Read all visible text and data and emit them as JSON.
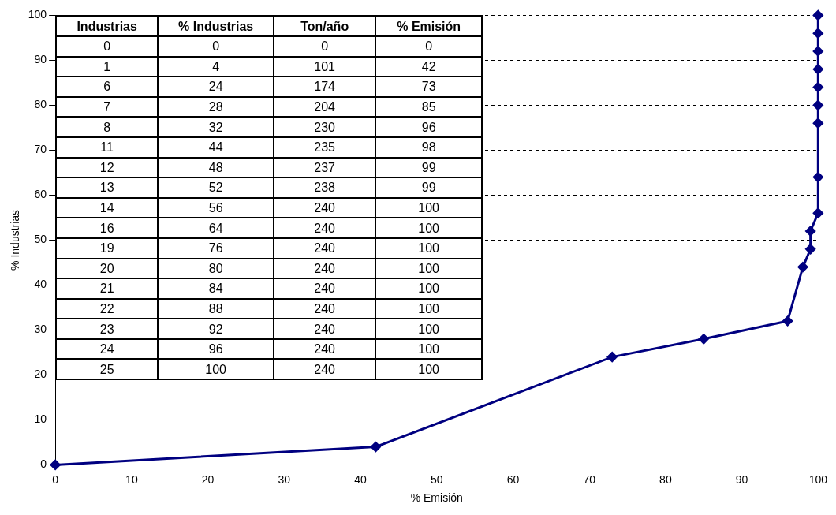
{
  "chart_data": {
    "type": "line",
    "xlabel": "% Emisión",
    "ylabel": "% Industrias",
    "x": [
      0,
      42,
      73,
      85,
      96,
      98,
      99,
      99,
      100,
      100,
      100,
      100,
      100,
      100,
      100,
      100,
      100
    ],
    "series": [
      {
        "color": "#000080",
        "values": [
          0,
          4,
          24,
          28,
          32,
          44,
          48,
          52,
          56,
          64,
          76,
          80,
          84,
          88,
          92,
          96,
          100
        ]
      }
    ],
    "xlim": [
      0,
      100
    ],
    "xticks": [
      0,
      10,
      20,
      30,
      40,
      50,
      60,
      70,
      80,
      90,
      100
    ],
    "ylim": [
      0,
      100
    ],
    "yticks": [
      0,
      10,
      20,
      30,
      40,
      50,
      60,
      70,
      80,
      90,
      100
    ],
    "grid": "y",
    "legend": false,
    "marker": "diamond",
    "line_style": "solid",
    "annotations": [
      "Industrias",
      "% Industrias",
      "Ton/año",
      "% Emisión",
      "0",
      "0",
      "0",
      "0",
      "1",
      "4",
      "101",
      "42",
      "6",
      "24",
      "174",
      "73",
      "7",
      "28",
      "204",
      "85",
      "8",
      "32",
      "230",
      "96",
      "11",
      "44",
      "235",
      "98",
      "12",
      "48",
      "237",
      "99",
      "13",
      "52",
      "238",
      "99",
      "14",
      "56",
      "240",
      "100",
      "16",
      "64",
      "240",
      "100",
      "19",
      "76",
      "240",
      "100",
      "20",
      "80",
      "240",
      "100",
      "21",
      "84",
      "240",
      "100",
      "22",
      "88",
      "240",
      "100",
      "23",
      "92",
      "240",
      "100",
      "24",
      "96",
      "240",
      "100",
      "25",
      "100",
      "240",
      "100"
    ]
  }
}
